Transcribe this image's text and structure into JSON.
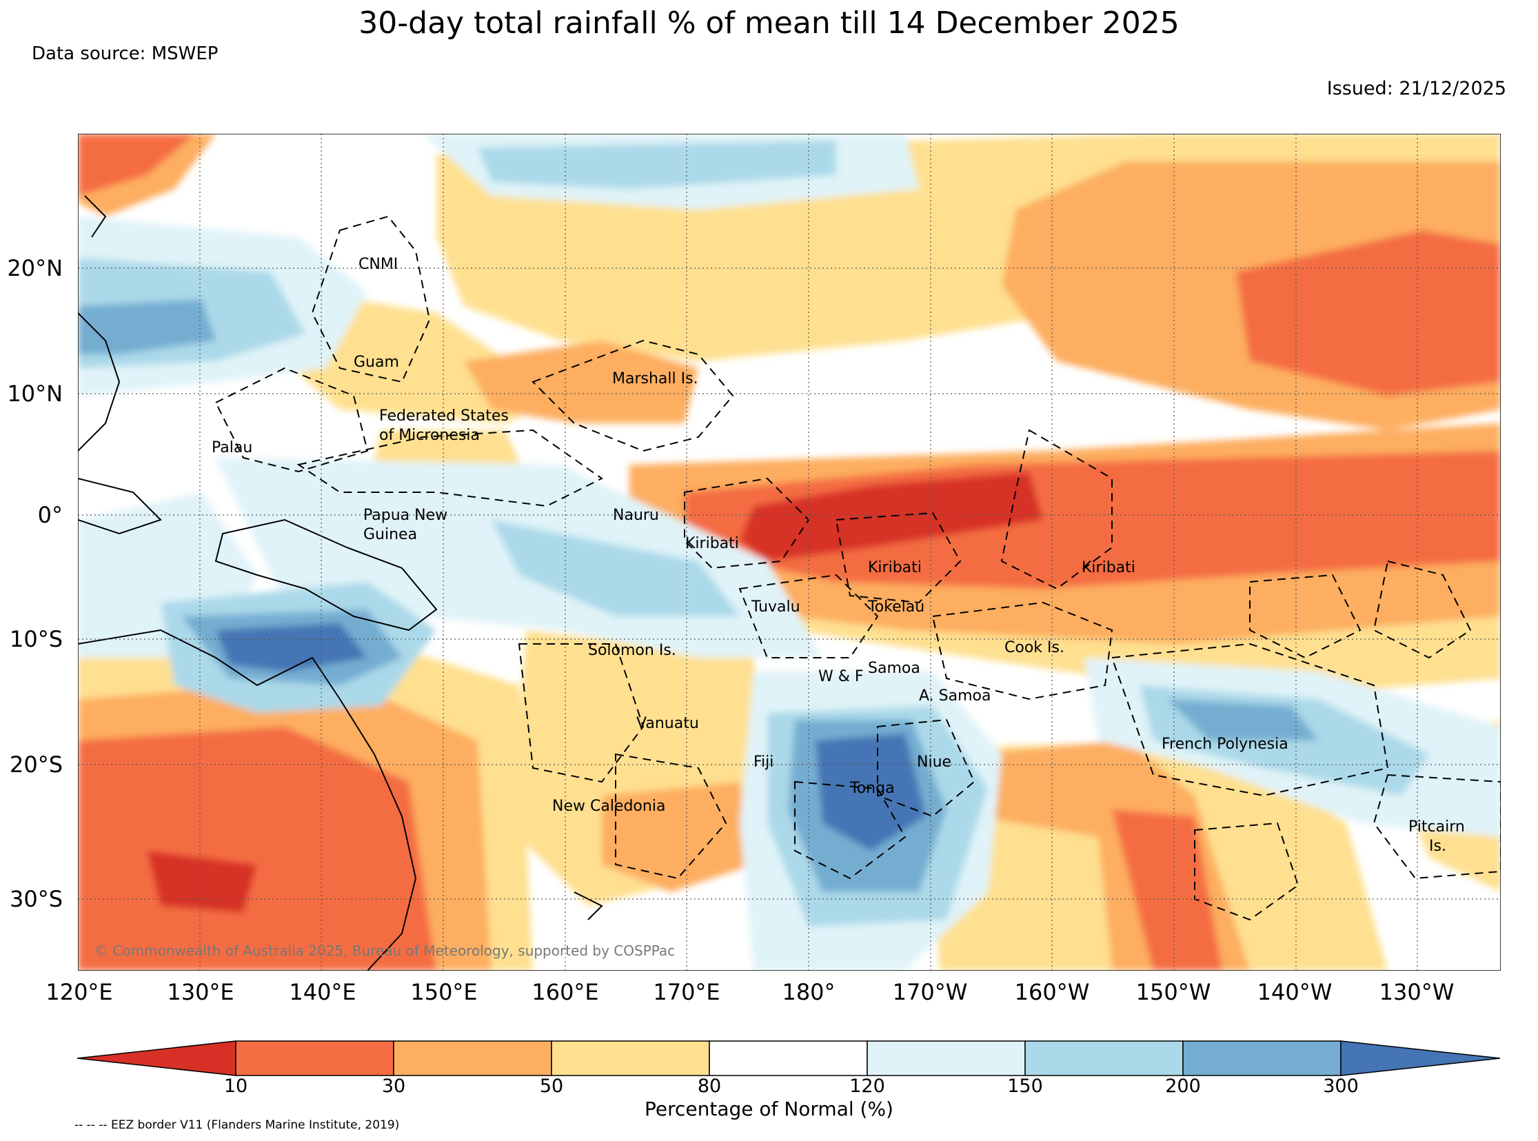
{
  "title": "30-day total rainfall % of mean till 14 December 2025",
  "data_source": "Data source: MSWEP",
  "issued": "Issued: 21/12/2025",
  "copyright": "© Commonwealth of Australia 2025, Bureau of Meteorology, supported by COSPPac",
  "eez_note": "-- -- -- EEZ border V11 (Flanders Marine Institute, 2019)",
  "map": {
    "lon_labels": [
      "120°E",
      "130°E",
      "140°E",
      "150°E",
      "160°E",
      "170°E",
      "180°",
      "170°W",
      "160°W",
      "150°W",
      "140°W",
      "130°W"
    ],
    "lat_labels": [
      "20°N",
      "10°N",
      "0°",
      "10°S",
      "20°S",
      "30°S"
    ],
    "places": [
      "CNMI",
      "Guam",
      "Marshall Is.",
      "Federated States",
      "of Micronesia",
      "Palau",
      "Papua New",
      "Guinea",
      "Nauru",
      "Kiribati",
      "Kiribati",
      "Kiribati",
      "Tuvalu",
      "Tokelau",
      "Cook Is.",
      "Solomon Is.",
      "W & F",
      "Samoa",
      "A. Samoa",
      "Vanuatu",
      "Fiji",
      "Niue",
      "Tonga",
      "French Polynesia",
      "New Caledonia",
      "Pitcairn",
      "Is."
    ]
  },
  "colorbar": {
    "label": "Percentage of Normal (%)",
    "ticks": [
      "10",
      "30",
      "50",
      "80",
      "120",
      "150",
      "200",
      "300"
    ],
    "colors": [
      "#d73027",
      "#f46d43",
      "#fdae61",
      "#fee090",
      "#ffffff",
      "#e0f3f8",
      "#abd9e9",
      "#74add1",
      "#4575b4"
    ]
  }
}
